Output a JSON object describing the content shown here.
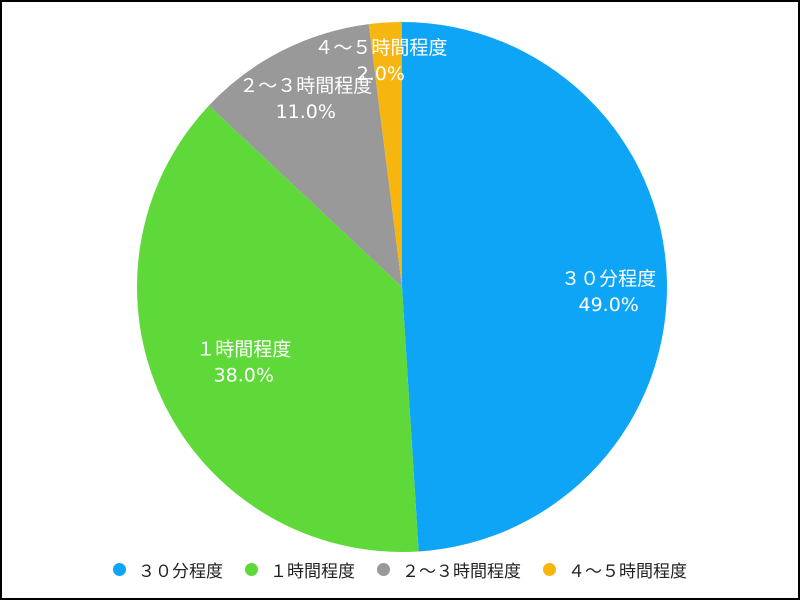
{
  "chart_data": {
    "type": "pie",
    "start_angle": "top",
    "direction": "clockwise",
    "data_labels": "inside",
    "legend_position": "bottom",
    "slices": [
      {
        "label": "３０分程度",
        "value": 49.0,
        "value_label": "49.0%",
        "color": "#0FA5F7"
      },
      {
        "label": "１時間程度",
        "value": 38.0,
        "value_label": "38.0%",
        "color": "#5FD93A"
      },
      {
        "label": "２〜３時間程度",
        "value": 11.0,
        "value_label": "11.0%",
        "color": "#999999"
      },
      {
        "label": "４〜５時間程度",
        "value": 2.0,
        "value_label": "2.0%",
        "color": "#F7B50F"
      }
    ]
  }
}
